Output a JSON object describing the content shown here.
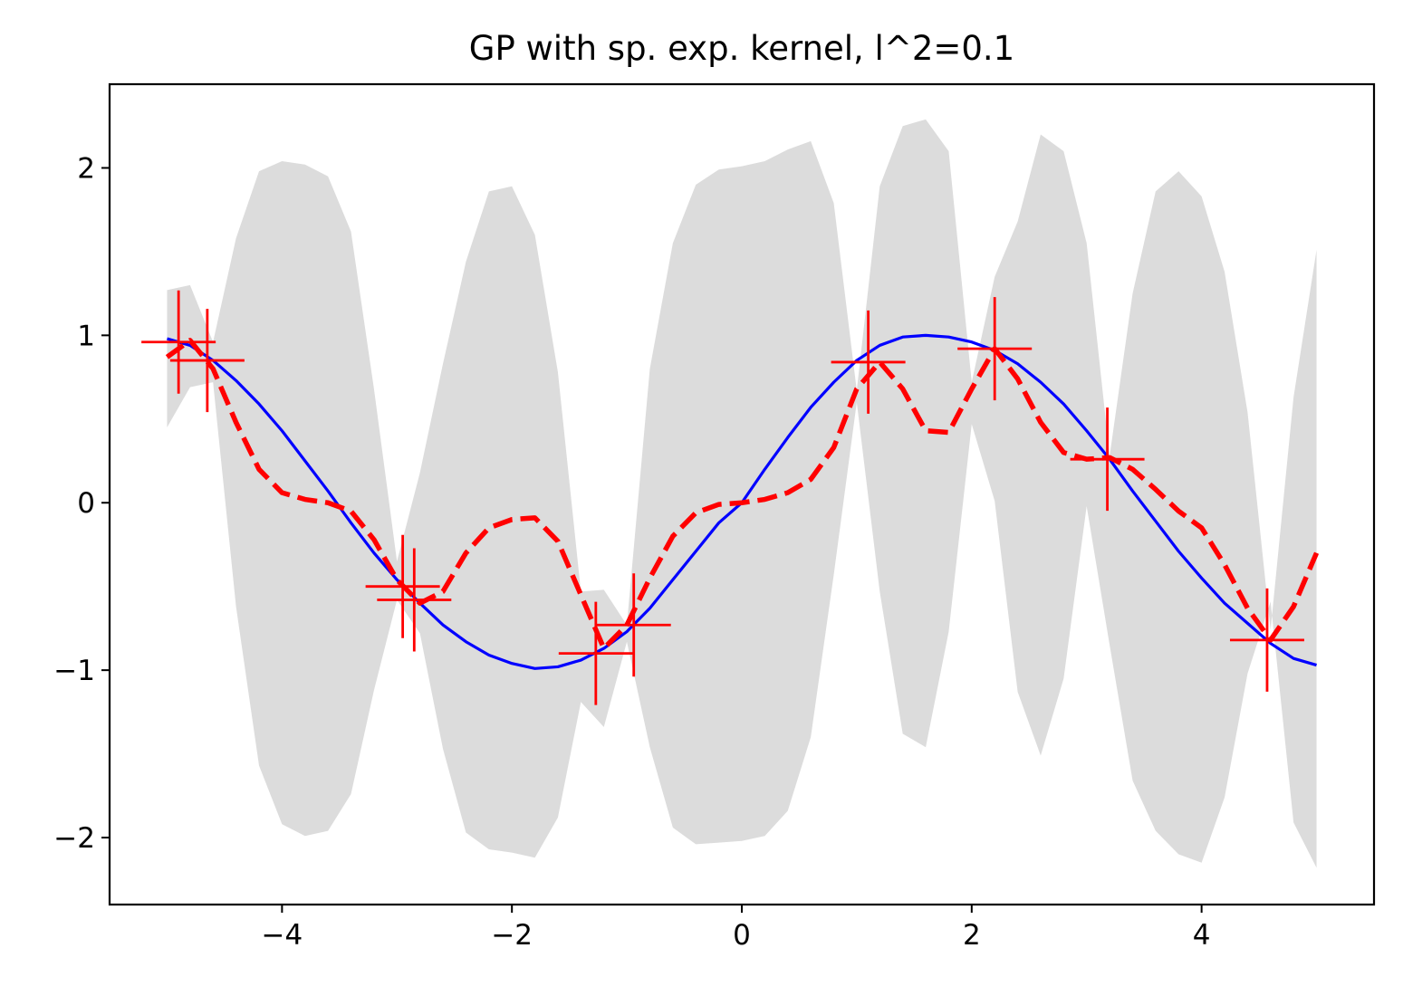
{
  "chart_data": {
    "type": "line",
    "title": "GP with sp. exp. kernel, l^2=0.1",
    "xlabel": "",
    "ylabel": "",
    "xlim": [
      -5.5,
      5.5
    ],
    "ylim": [
      -2.4,
      2.5
    ],
    "x_ticks": [
      -4,
      -2,
      0,
      2,
      4
    ],
    "y_ticks": [
      -2,
      -1,
      0,
      1,
      2
    ],
    "x_tick_labels": [
      "−4",
      "−2",
      "0",
      "2",
      "4"
    ],
    "y_tick_labels": [
      "−2",
      "−1",
      "0",
      "1",
      "2"
    ],
    "grid": false,
    "legend": "none",
    "colors": {
      "band": "#dcdcdc",
      "true_function": "#0000ff",
      "posterior_mean": "#ff0000",
      "observations": "#ff0000"
    },
    "x": [
      -5.0,
      -4.8,
      -4.6,
      -4.4,
      -4.2,
      -4.0,
      -3.8,
      -3.6,
      -3.4,
      -3.2,
      -3.0,
      -2.8,
      -2.6,
      -2.4,
      -2.2,
      -2.0,
      -1.8,
      -1.6,
      -1.4,
      -1.2,
      -1.0,
      -0.8,
      -0.6,
      -0.4,
      -0.2,
      0.0,
      0.2,
      0.4,
      0.6,
      0.8,
      1.0,
      1.2,
      1.4,
      1.6,
      1.8,
      2.0,
      2.2,
      2.4,
      2.6,
      2.8,
      3.0,
      3.2,
      3.4,
      3.6,
      3.8,
      4.0,
      4.2,
      4.4,
      4.6,
      4.8,
      5.0
    ],
    "series": [
      {
        "role": "true_function",
        "values": [
          0.98,
          0.94,
          0.85,
          0.73,
          0.59,
          0.43,
          0.25,
          0.07,
          -0.12,
          -0.3,
          -0.46,
          -0.6,
          -0.73,
          -0.83,
          -0.91,
          -0.96,
          -0.99,
          -0.98,
          -0.94,
          -0.87,
          -0.77,
          -0.63,
          -0.46,
          -0.29,
          -0.12,
          0.0,
          0.2,
          0.39,
          0.57,
          0.72,
          0.85,
          0.94,
          0.99,
          1.0,
          0.99,
          0.96,
          0.91,
          0.83,
          0.72,
          0.59,
          0.43,
          0.26,
          0.07,
          -0.11,
          -0.29,
          -0.45,
          -0.6,
          -0.72,
          -0.84,
          -0.93,
          -0.97
        ]
      },
      {
        "role": "posterior_mean",
        "values": [
          0.87,
          0.97,
          0.8,
          0.48,
          0.2,
          0.06,
          0.02,
          0.0,
          -0.05,
          -0.22,
          -0.46,
          -0.6,
          -0.53,
          -0.3,
          -0.15,
          -0.1,
          -0.09,
          -0.23,
          -0.55,
          -0.87,
          -0.73,
          -0.45,
          -0.2,
          -0.06,
          -0.01,
          0.0,
          0.02,
          0.06,
          0.14,
          0.33,
          0.68,
          0.84,
          0.68,
          0.43,
          0.42,
          0.68,
          0.92,
          0.74,
          0.48,
          0.3,
          0.26,
          0.27,
          0.2,
          0.08,
          -0.05,
          -0.15,
          -0.37,
          -0.63,
          -0.82,
          -0.62,
          -0.3
        ]
      }
    ],
    "band_upper": [
      1.27,
      1.3,
      0.96,
      1.58,
      1.98,
      2.04,
      2.02,
      1.95,
      1.62,
      0.68,
      -0.35,
      0.18,
      0.83,
      1.44,
      1.86,
      1.89,
      1.6,
      0.78,
      -0.53,
      -0.52,
      -0.73,
      0.8,
      1.55,
      1.9,
      1.99,
      2.01,
      2.04,
      2.11,
      2.16,
      1.79,
      0.67,
      1.89,
      2.25,
      2.29,
      2.1,
      0.72,
      1.35,
      1.68,
      2.2,
      2.1,
      1.55,
      0.28,
      1.25,
      1.86,
      1.98,
      1.83,
      1.38,
      0.54,
      -0.76,
      0.63,
      1.51
    ],
    "band_lower": [
      0.45,
      0.69,
      0.72,
      -0.62,
      -1.57,
      -1.92,
      -1.99,
      -1.96,
      -1.74,
      -1.12,
      -0.58,
      -0.78,
      -1.47,
      -1.97,
      -2.07,
      -2.09,
      -2.12,
      -1.88,
      -1.19,
      -1.34,
      -0.83,
      -1.46,
      -1.94,
      -2.04,
      -2.03,
      -2.02,
      -1.99,
      -1.84,
      -1.4,
      -0.43,
      0.6,
      -0.53,
      -1.38,
      -1.46,
      -0.77,
      0.47,
      0.01,
      -1.13,
      -1.51,
      -1.05,
      -0.02,
      -0.85,
      -1.66,
      -1.96,
      -2.1,
      -2.15,
      -1.76,
      -1.02,
      -0.59,
      -1.91,
      -2.18
    ],
    "observations": [
      {
        "x": -4.9,
        "y": 0.96
      },
      {
        "x": -4.65,
        "y": 0.85
      },
      {
        "x": -2.95,
        "y": -0.5
      },
      {
        "x": -2.85,
        "y": -0.58
      },
      {
        "x": -1.27,
        "y": -0.9
      },
      {
        "x": -0.94,
        "y": -0.73
      },
      {
        "x": 1.1,
        "y": 0.84
      },
      {
        "x": 2.2,
        "y": 0.92
      },
      {
        "x": 3.18,
        "y": 0.26
      },
      {
        "x": 4.57,
        "y": -0.82
      }
    ]
  }
}
